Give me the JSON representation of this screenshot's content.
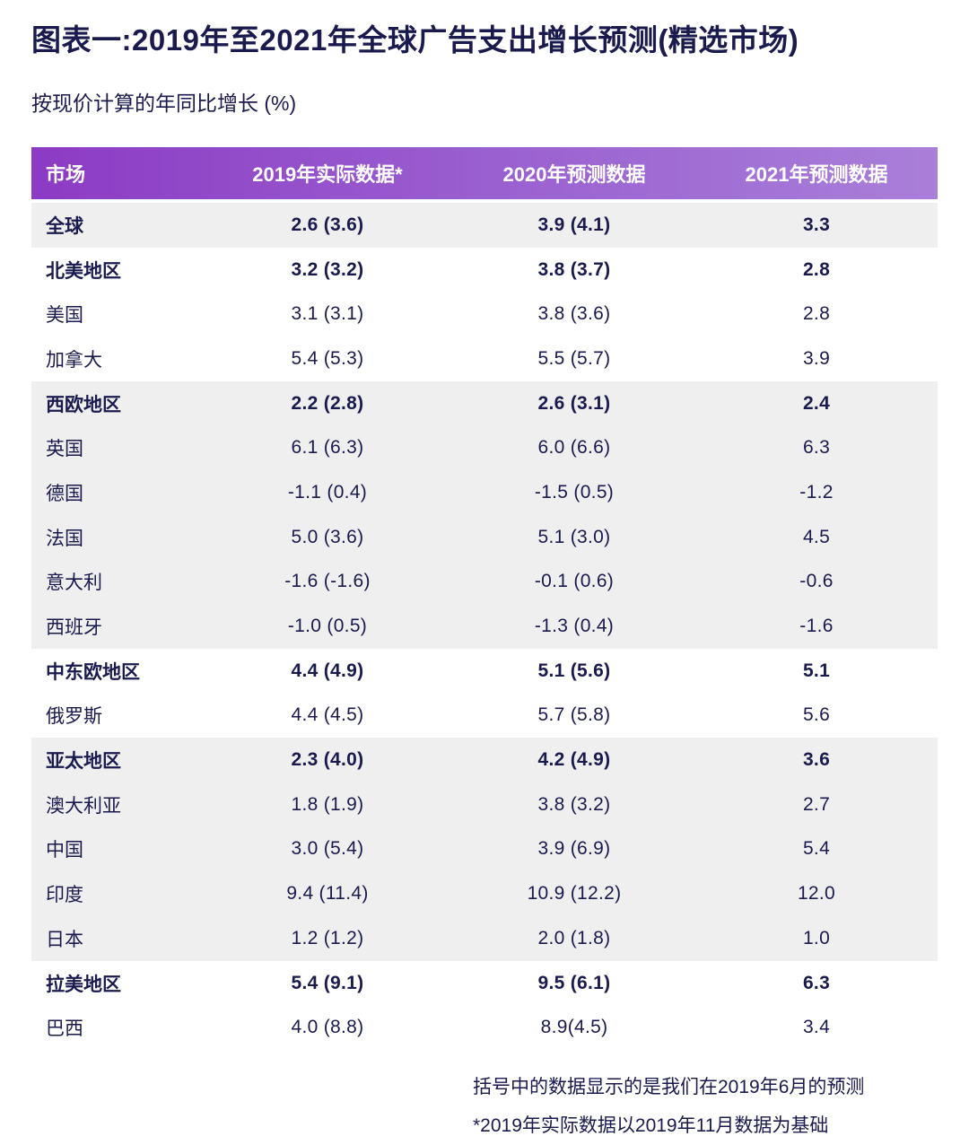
{
  "colors": {
    "text_navy": "#1A1A4E",
    "header_gradient_start": "#8C3BC4",
    "header_gradient_end": "#A97FD9",
    "header_text": "#FFFFFF",
    "row_shade_gray": "#EFEFEF",
    "row_shade_white": "#FFFFFF"
  },
  "header": {
    "title": "图表一:2019年至2021年全球广告支出增长预测(精选市场)",
    "subtitle": "按现价计算的年同比增长 (%)"
  },
  "table": {
    "columns": [
      "市场",
      "2019年实际数据*",
      "2020年预测数据",
      "2021年预测数据"
    ],
    "rows": [
      {
        "market": "全球",
        "v2019": "2.6 (3.6)",
        "v2020": "3.9 (4.1)",
        "v2021": "3.3",
        "bold": true,
        "shade": "gray"
      },
      {
        "market": "北美地区",
        "v2019": "3.2 (3.2)",
        "v2020": "3.8 (3.7)",
        "v2021": "2.8",
        "bold": true,
        "shade": "white"
      },
      {
        "market": "美国",
        "v2019": "3.1 (3.1)",
        "v2020": "3.8 (3.6)",
        "v2021": "2.8",
        "bold": false,
        "shade": "white"
      },
      {
        "market": "加拿大",
        "v2019": "5.4 (5.3)",
        "v2020": "5.5 (5.7)",
        "v2021": "3.9",
        "bold": false,
        "shade": "white"
      },
      {
        "market": "西欧地区",
        "v2019": "2.2 (2.8)",
        "v2020": "2.6 (3.1)",
        "v2021": "2.4",
        "bold": true,
        "shade": "gray"
      },
      {
        "market": "英国",
        "v2019": "6.1 (6.3)",
        "v2020": "6.0 (6.6)",
        "v2021": "6.3",
        "bold": false,
        "shade": "gray"
      },
      {
        "market": "德国",
        "v2019": "-1.1 (0.4)",
        "v2020": "-1.5 (0.5)",
        "v2021": "-1.2",
        "bold": false,
        "shade": "gray"
      },
      {
        "market": "法国",
        "v2019": "5.0 (3.6)",
        "v2020": "5.1 (3.0)",
        "v2021": "4.5",
        "bold": false,
        "shade": "gray"
      },
      {
        "market": "意大利",
        "v2019": "-1.6 (-1.6)",
        "v2020": "-0.1 (0.6)",
        "v2021": "-0.6",
        "bold": false,
        "shade": "gray"
      },
      {
        "market": "西班牙",
        "v2019": "-1.0 (0.5)",
        "v2020": "-1.3 (0.4)",
        "v2021": "-1.6",
        "bold": false,
        "shade": "gray"
      },
      {
        "market": "中东欧地区",
        "v2019": "4.4 (4.9)",
        "v2020": "5.1 (5.6)",
        "v2021": "5.1",
        "bold": true,
        "shade": "white"
      },
      {
        "market": "俄罗斯",
        "v2019": "4.4 (4.5)",
        "v2020": "5.7 (5.8)",
        "v2021": "5.6",
        "bold": false,
        "shade": "white"
      },
      {
        "market": "亚太地区",
        "v2019": "2.3 (4.0)",
        "v2020": "4.2 (4.9)",
        "v2021": "3.6",
        "bold": true,
        "shade": "gray"
      },
      {
        "market": "澳大利亚",
        "v2019": "1.8 (1.9)",
        "v2020": "3.8 (3.2)",
        "v2021": "2.7",
        "bold": false,
        "shade": "gray"
      },
      {
        "market": "中国",
        "v2019": "3.0 (5.4)",
        "v2020": "3.9 (6.9)",
        "v2021": "5.4",
        "bold": false,
        "shade": "gray"
      },
      {
        "market": "印度",
        "v2019": "9.4 (11.4)",
        "v2020": "10.9 (12.2)",
        "v2021": "12.0",
        "bold": false,
        "shade": "gray"
      },
      {
        "market": "日本",
        "v2019": "1.2 (1.2)",
        "v2020": "2.0 (1.8)",
        "v2021": "1.0",
        "bold": false,
        "shade": "gray"
      },
      {
        "market": "拉美地区",
        "v2019": "5.4 (9.1)",
        "v2020": "9.5 (6.1)",
        "v2021": "6.3",
        "bold": true,
        "shade": "white"
      },
      {
        "market": "巴西",
        "v2019": "4.0 (8.8)",
        "v2020": "8.9(4.5)",
        "v2021": "3.4",
        "bold": false,
        "shade": "white"
      }
    ]
  },
  "footnotes": [
    "括号中的数据显示的是我们在2019年6月的预测",
    "*2019年实际数据以2019年11月数据为基础"
  ],
  "chart_data": {
    "type": "table",
    "title": "图表一:2019年至2021年全球广告支出增长预测(精选市场)",
    "subtitle": "按现价计算的年同比增长 (%)",
    "units": "%",
    "columns": [
      "市场",
      "2019年实际数据*",
      "2020年预测数据",
      "2021年预测数据"
    ],
    "notes": [
      "括号中的数据显示的是我们在2019年6月的预测",
      "*2019年实际数据以2019年11月数据为基础"
    ],
    "rows": [
      {
        "market": "全球",
        "actual_2019": 2.6,
        "jun2019_forecast_2019": 3.6,
        "forecast_2020": 3.9,
        "jun2019_forecast_2020": 4.1,
        "forecast_2021": 3.3,
        "is_region": true
      },
      {
        "market": "北美地区",
        "actual_2019": 3.2,
        "jun2019_forecast_2019": 3.2,
        "forecast_2020": 3.8,
        "jun2019_forecast_2020": 3.7,
        "forecast_2021": 2.8,
        "is_region": true
      },
      {
        "market": "美国",
        "actual_2019": 3.1,
        "jun2019_forecast_2019": 3.1,
        "forecast_2020": 3.8,
        "jun2019_forecast_2020": 3.6,
        "forecast_2021": 2.8,
        "is_region": false
      },
      {
        "market": "加拿大",
        "actual_2019": 5.4,
        "jun2019_forecast_2019": 5.3,
        "forecast_2020": 5.5,
        "jun2019_forecast_2020": 5.7,
        "forecast_2021": 3.9,
        "is_region": false
      },
      {
        "market": "西欧地区",
        "actual_2019": 2.2,
        "jun2019_forecast_2019": 2.8,
        "forecast_2020": 2.6,
        "jun2019_forecast_2020": 3.1,
        "forecast_2021": 2.4,
        "is_region": true
      },
      {
        "market": "英国",
        "actual_2019": 6.1,
        "jun2019_forecast_2019": 6.3,
        "forecast_2020": 6.0,
        "jun2019_forecast_2020": 6.6,
        "forecast_2021": 6.3,
        "is_region": false
      },
      {
        "market": "德国",
        "actual_2019": -1.1,
        "jun2019_forecast_2019": 0.4,
        "forecast_2020": -1.5,
        "jun2019_forecast_2020": 0.5,
        "forecast_2021": -1.2,
        "is_region": false
      },
      {
        "market": "法国",
        "actual_2019": 5.0,
        "jun2019_forecast_2019": 3.6,
        "forecast_2020": 5.1,
        "jun2019_forecast_2020": 3.0,
        "forecast_2021": 4.5,
        "is_region": false
      },
      {
        "market": "意大利",
        "actual_2019": -1.6,
        "jun2019_forecast_2019": -1.6,
        "forecast_2020": -0.1,
        "jun2019_forecast_2020": 0.6,
        "forecast_2021": -0.6,
        "is_region": false
      },
      {
        "market": "西班牙",
        "actual_2019": -1.0,
        "jun2019_forecast_2019": 0.5,
        "forecast_2020": -1.3,
        "jun2019_forecast_2020": 0.4,
        "forecast_2021": -1.6,
        "is_region": false
      },
      {
        "market": "中东欧地区",
        "actual_2019": 4.4,
        "jun2019_forecast_2019": 4.9,
        "forecast_2020": 5.1,
        "jun2019_forecast_2020": 5.6,
        "forecast_2021": 5.1,
        "is_region": true
      },
      {
        "market": "俄罗斯",
        "actual_2019": 4.4,
        "jun2019_forecast_2019": 4.5,
        "forecast_2020": 5.7,
        "jun2019_forecast_2020": 5.8,
        "forecast_2021": 5.6,
        "is_region": false
      },
      {
        "market": "亚太地区",
        "actual_2019": 2.3,
        "jun2019_forecast_2019": 4.0,
        "forecast_2020": 4.2,
        "jun2019_forecast_2020": 4.9,
        "forecast_2021": 3.6,
        "is_region": true
      },
      {
        "market": "澳大利亚",
        "actual_2019": 1.8,
        "jun2019_forecast_2019": 1.9,
        "forecast_2020": 3.8,
        "jun2019_forecast_2020": 3.2,
        "forecast_2021": 2.7,
        "is_region": false
      },
      {
        "market": "中国",
        "actual_2019": 3.0,
        "jun2019_forecast_2019": 5.4,
        "forecast_2020": 3.9,
        "jun2019_forecast_2020": 6.9,
        "forecast_2021": 5.4,
        "is_region": false
      },
      {
        "market": "印度",
        "actual_2019": 9.4,
        "jun2019_forecast_2019": 11.4,
        "forecast_2020": 10.9,
        "jun2019_forecast_2020": 12.2,
        "forecast_2021": 12.0,
        "is_region": false
      },
      {
        "market": "日本",
        "actual_2019": 1.2,
        "jun2019_forecast_2019": 1.2,
        "forecast_2020": 2.0,
        "jun2019_forecast_2020": 1.8,
        "forecast_2021": 1.0,
        "is_region": false
      },
      {
        "market": "拉美地区",
        "actual_2019": 5.4,
        "jun2019_forecast_2019": 9.1,
        "forecast_2020": 9.5,
        "jun2019_forecast_2020": 6.1,
        "forecast_2021": 6.3,
        "is_region": true
      },
      {
        "market": "巴西",
        "actual_2019": 4.0,
        "jun2019_forecast_2019": 8.8,
        "forecast_2020": 8.9,
        "jun2019_forecast_2020": 4.5,
        "forecast_2021": 3.4,
        "is_region": false
      }
    ]
  }
}
